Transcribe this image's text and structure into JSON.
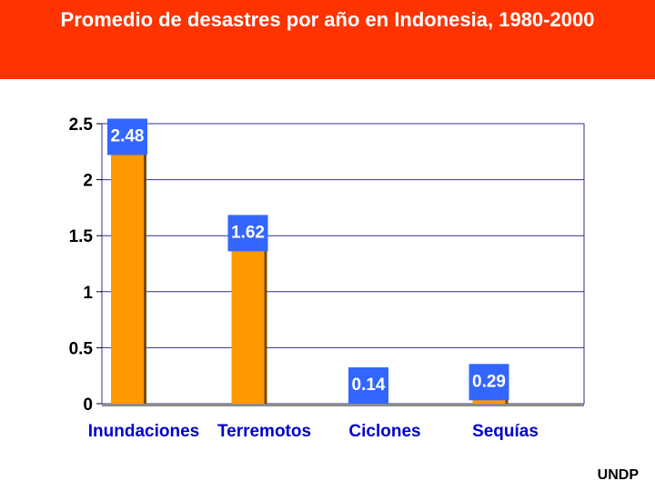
{
  "slide": {
    "title": "Promedio de desastres por año en Indonesia, 1980-2000",
    "footer": "UNDP"
  },
  "colors": {
    "header_bg": "#ff3300",
    "bar": "#ff9900",
    "label_bg": "#3366ff",
    "grid": "#2f2f8f"
  },
  "chart_data": {
    "type": "bar",
    "title": "",
    "xlabel": "",
    "ylabel": "",
    "categories": [
      "Inundaciones",
      "Terremotos",
      "Ciclones",
      "Sequías"
    ],
    "values": [
      2.48,
      1.62,
      0.14,
      0.29
    ],
    "value_labels": [
      "2.48",
      "1.62",
      "0.14",
      "0.29"
    ],
    "ylim": [
      0,
      2.5
    ],
    "yticks": [
      0,
      0.5,
      1,
      1.5,
      2,
      2.5
    ],
    "ytick_labels": [
      "0",
      "0.5",
      "1",
      "1.5",
      "2",
      "2.5"
    ],
    "grid": true,
    "legend": false
  }
}
